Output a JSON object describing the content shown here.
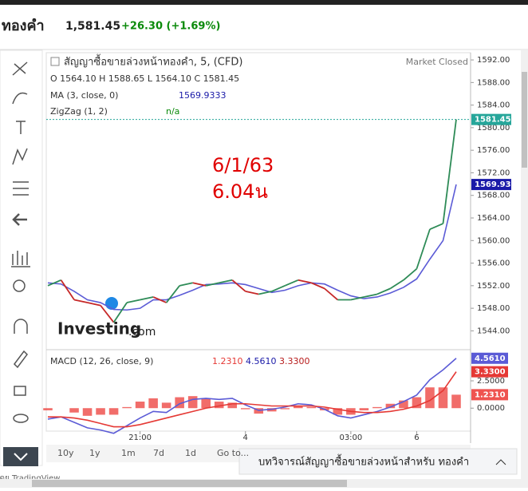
{
  "header": {
    "title": "ทองคำ",
    "price": "1,581.45",
    "change": "+26.30 (+1.69%)"
  },
  "chart_data": {
    "type": "line",
    "title": "สัญญาซื้อขายล่วงหน้าทองคำ, 5, (CFD)",
    "status": "Market Closed",
    "ohlc_text": "O 1564.10 H 1588.65 L 1564.10 C 1581.45",
    "annotation": [
      "6/1/63",
      "6.04น"
    ],
    "categories": [
      null,
      null,
      null,
      null,
      null,
      null,
      null,
      "21:00",
      null,
      null,
      null,
      null,
      null,
      null,
      null,
      "4",
      null,
      null,
      null,
      null,
      null,
      null,
      null,
      "03:00",
      null,
      null,
      null,
      null,
      "6",
      null,
      null,
      null
    ],
    "values": [
      1552,
      1553,
      1549.5,
      1549,
      1548.5,
      1545.5,
      1549,
      1549.5,
      1550,
      1549,
      1552,
      1552.5,
      1552,
      1552.5,
      1553,
      1551,
      1550.5,
      1551,
      1552,
      1553,
      1552.5,
      1551.5,
      1549.5,
      1549.5,
      1550,
      1550.5,
      1551.5,
      1553,
      1555,
      1562,
      1563,
      1581.45
    ],
    "color": "#2e8b57",
    "ma": {
      "label": "MA (3, close, 0)",
      "last_label": "1569.9333",
      "color": "#5b5bd6",
      "values": [
        1552.5,
        1552.3,
        1551,
        1549.5,
        1549,
        1547.8,
        1547.7,
        1548,
        1549.5,
        1549.5,
        1550.3,
        1551.2,
        1552.2,
        1552.3,
        1552.5,
        1552.2,
        1551.5,
        1550.8,
        1551.2,
        1552,
        1552.5,
        1552.3,
        1551.2,
        1550.2,
        1549.7,
        1550,
        1550.7,
        1551.7,
        1553.2,
        1556.7,
        1560,
        1569.93
      ]
    },
    "zigzag": {
      "label": "ZigZag (1, 2)",
      "last_label": "n/a"
    },
    "ylim": [
      1542.5,
      1593
    ],
    "yticks": [
      {
        "value": 1544,
        "label": "1544.00"
      },
      {
        "value": 1548,
        "label": "1548.00"
      },
      {
        "value": 1552,
        "label": "1552.00"
      },
      {
        "value": 1556,
        "label": "1556.00"
      },
      {
        "value": 1560,
        "label": "1560.00"
      },
      {
        "value": 1564,
        "label": "1564.00"
      },
      {
        "value": 1568,
        "label": "1568.00"
      },
      {
        "value": 1572,
        "label": "1572.00"
      },
      {
        "value": 1576,
        "label": "1576.00"
      },
      {
        "value": 1580,
        "label": "1580.00"
      },
      {
        "value": 1584,
        "label": "1584.00"
      },
      {
        "value": 1588,
        "label": "1588.00"
      },
      {
        "value": 1592,
        "label": "1592.00"
      }
    ],
    "price_labels": [
      {
        "value": 1581.45,
        "label": "1581.45",
        "color": "#26a69a"
      },
      {
        "value": 1569.93,
        "label": "1569.93",
        "color": "#1a1aa8"
      }
    ],
    "macd": {
      "title": "MACD (12, 26, close, 9)",
      "ylim": [
        -2.1,
        5.2
      ],
      "yticks": [
        {
          "value": 2.5,
          "label": "2.5000"
        },
        {
          "value": 0,
          "label": "0.0000"
        }
      ],
      "histogram": {
        "color": "#ef5350",
        "last_label": "1.2310",
        "values": [
          -0.2,
          0,
          -0.4,
          -0.7,
          -0.6,
          -0.6,
          0.1,
          0.6,
          0.9,
          0.5,
          1.0,
          1.1,
          0.9,
          0.6,
          0.5,
          -0.1,
          -0.5,
          -0.3,
          -0.1,
          0.2,
          0.1,
          -0.2,
          -0.6,
          -0.6,
          -0.2,
          0.1,
          0.4,
          0.7,
          1.0,
          1.9,
          1.9,
          1.231
        ]
      },
      "series": [
        {
          "color": "#5b5bd6",
          "last_label": "4.5610",
          "values": [
            -1.0,
            -0.8,
            -1.3,
            -1.8,
            -2.0,
            -2.3,
            -1.6,
            -0.9,
            -0.3,
            -0.4,
            0.4,
            0.8,
            0.9,
            0.8,
            0.9,
            0.3,
            -0.2,
            -0.1,
            0.1,
            0.4,
            0.3,
            -0.1,
            -0.7,
            -0.9,
            -0.6,
            -0.3,
            0.1,
            0.6,
            1.2,
            2.6,
            3.5,
            4.561
          ]
        },
        {
          "color": "#e53935",
          "last_label": "3.3300",
          "values": [
            -0.8,
            -0.8,
            -0.9,
            -1.1,
            -1.4,
            -1.7,
            -1.7,
            -1.5,
            -1.2,
            -0.9,
            -0.6,
            -0.3,
            0.0,
            0.2,
            0.4,
            0.4,
            0.3,
            0.2,
            0.2,
            0.2,
            0.2,
            0.1,
            -0.1,
            -0.3,
            -0.4,
            -0.4,
            -0.3,
            -0.1,
            0.2,
            0.7,
            1.6,
            3.33
          ]
        }
      ]
    }
  },
  "brand": {
    "name": "Investing",
    "suffix": ".com"
  },
  "ranges": [
    "10y",
    "1y",
    "1m",
    "7d",
    "1d",
    "Go to..."
  ],
  "footer": {
    "banner": "บทวิจารณ์สัญญาซื้อขายล่วงหน้าสำหรับ ทองคำ",
    "credit": "กราฟโดย TradingView"
  }
}
